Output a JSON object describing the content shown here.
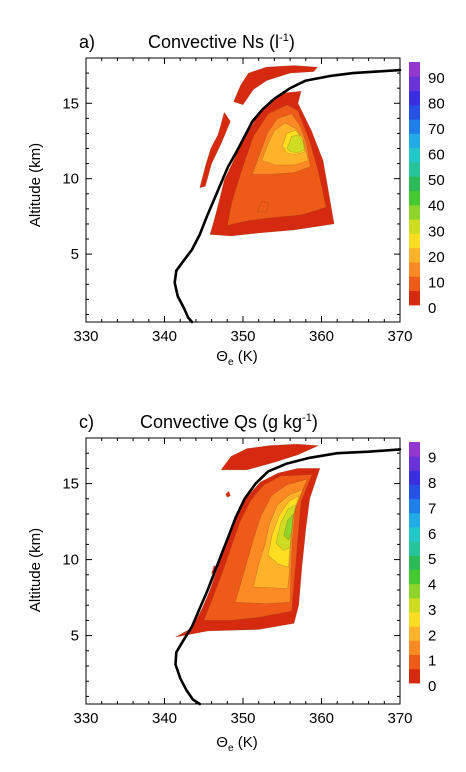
{
  "chart_data": [
    {
      "type": "contour",
      "panel_label": "a)",
      "title_main": "Convective  Ns (l",
      "title_sup": "-1",
      "title_end": ")",
      "xlabel_main": "Θ",
      "xlabel_sub": "e",
      "xlabel_unit": " (K)",
      "ylabel": "Altitude (km)",
      "xlim": [
        330,
        370
      ],
      "ylim": [
        0.5,
        18
      ],
      "xticks": [
        "330",
        "340",
        "350",
        "360",
        "370"
      ],
      "yticks": [
        "5",
        "10",
        "15"
      ],
      "colorbar": {
        "ticks": [
          "0",
          "10",
          "20",
          "30",
          "40",
          "50",
          "60",
          "70",
          "80",
          "90"
        ],
        "colors": [
          "#d62a10",
          "#ee5a18",
          "#fb8a25",
          "#ffb32a",
          "#ffde22",
          "#cfdd22",
          "#8fd42a",
          "#45c832",
          "#2dbb5a",
          "#27c39a",
          "#22c8c8",
          "#23abe5",
          "#1f7fea",
          "#2651e5",
          "#3a2fe0",
          "#6a33d8",
          "#9437cf"
        ]
      },
      "profile_line": [
        [
          343.5,
          0.5
        ],
        [
          343,
          0.8
        ],
        [
          342.5,
          1.4
        ],
        [
          341.7,
          2.2
        ],
        [
          341.3,
          3.1
        ],
        [
          341.5,
          3.9
        ],
        [
          342.2,
          4.4
        ],
        [
          343.5,
          5.3
        ],
        [
          344.5,
          6.3
        ],
        [
          345.4,
          7.5
        ],
        [
          346.3,
          8.6
        ],
        [
          347.2,
          9.7
        ],
        [
          348.1,
          10.8
        ],
        [
          349.2,
          11.8
        ],
        [
          350.2,
          12.8
        ],
        [
          351.2,
          13.8
        ],
        [
          352.5,
          14.6
        ],
        [
          354,
          15.3
        ],
        [
          356,
          16
        ],
        [
          358,
          16.5
        ],
        [
          361,
          16.8
        ],
        [
          364,
          17
        ],
        [
          367,
          17.1
        ],
        [
          370,
          17.2
        ]
      ],
      "contours": [
        {
          "level": 0,
          "polygon": [
            [
              345.8,
              6.3
            ],
            [
              346.3,
              7.2
            ],
            [
              347.1,
              8.8
            ],
            [
              347.6,
              9.9
            ],
            [
              348.7,
              11.1
            ],
            [
              350.2,
              12.7
            ],
            [
              351.8,
              14.1
            ],
            [
              353.5,
              15.2
            ],
            [
              355.5,
              15.7
            ],
            [
              357.4,
              15.8
            ],
            [
              357.0,
              15.0
            ],
            [
              358.7,
              13.2
            ],
            [
              360.2,
              11.2
            ],
            [
              361.6,
              7.0
            ],
            [
              356.5,
              6.6
            ],
            [
              352.0,
              6.4
            ],
            [
              348.5,
              6.2
            ]
          ]
        },
        {
          "level": 0,
          "polygon": [
            [
              348.8,
              15.1
            ],
            [
              349.7,
              16.2
            ],
            [
              350.7,
              17.0
            ],
            [
              353.0,
              17.4
            ],
            [
              356.5,
              17.5
            ],
            [
              359.5,
              17.4
            ],
            [
              359.0,
              17.1
            ],
            [
              356.0,
              17.0
            ],
            [
              353.0,
              16.5
            ],
            [
              351.3,
              15.9
            ],
            [
              350.0,
              14.9
            ]
          ]
        },
        {
          "level": 0,
          "polygon": [
            [
              344.5,
              9.4
            ],
            [
              345.3,
              11.0
            ],
            [
              345.9,
              12.0
            ],
            [
              346.8,
              12.9
            ],
            [
              347.2,
              13.6
            ],
            [
              347.6,
              14.4
            ],
            [
              348.4,
              13.8
            ],
            [
              347.2,
              12.3
            ],
            [
              346.0,
              11.0
            ],
            [
              345.2,
              9.5
            ]
          ]
        },
        {
          "level": 5,
          "polygon": [
            [
              348.0,
              6.9
            ],
            [
              348.6,
              8.5
            ],
            [
              349.8,
              10.5
            ],
            [
              351.3,
              12.8
            ],
            [
              353.2,
              14.3
            ],
            [
              355.6,
              14.9
            ],
            [
              357.0,
              14.5
            ],
            [
              358.5,
              12.5
            ],
            [
              359.6,
              10.5
            ],
            [
              360.6,
              8.1
            ],
            [
              357.5,
              7.6
            ],
            [
              353.5,
              7.4
            ],
            [
              350.5,
              7.2
            ]
          ]
        },
        {
          "level": 10,
          "polygon": [
            [
              351.2,
              10.3
            ],
            [
              352.1,
              11.6
            ],
            [
              353.1,
              13.0
            ],
            [
              354.4,
              14.0
            ],
            [
              356.2,
              14.3
            ],
            [
              357.3,
              13.5
            ],
            [
              358.1,
              12.3
            ],
            [
              358.6,
              10.8
            ],
            [
              356.5,
              10.4
            ],
            [
              353.5,
              10.3
            ]
          ]
        },
        {
          "level": 15,
          "polygon": [
            [
              352.4,
              11.2
            ],
            [
              353.1,
              12.2
            ],
            [
              354.0,
              13.2
            ],
            [
              355.4,
              13.7
            ],
            [
              356.8,
              13.3
            ],
            [
              357.8,
              12.4
            ],
            [
              358.3,
              11.2
            ],
            [
              356.5,
              10.9
            ],
            [
              354.2,
              10.9
            ]
          ]
        },
        {
          "level": 20,
          "polygon": [
            [
              355.0,
              12.2
            ],
            [
              355.6,
              13.0
            ],
            [
              356.7,
              13.2
            ],
            [
              357.6,
              12.7
            ],
            [
              357.9,
              11.8
            ],
            [
              356.8,
              11.6
            ],
            [
              355.6,
              11.7
            ]
          ]
        },
        {
          "level": 25,
          "polygon": [
            [
              355.6,
              12.0
            ],
            [
              356.2,
              12.8
            ],
            [
              357.1,
              12.9
            ],
            [
              357.7,
              12.4
            ],
            [
              357.8,
              11.9
            ],
            [
              356.9,
              11.7
            ],
            [
              356.0,
              11.8
            ]
          ]
        },
        {
          "level": 5,
          "polygon": [
            [
              351.8,
              7.8
            ],
            [
              352.4,
              8.5
            ],
            [
              353.3,
              8.4
            ],
            [
              353.0,
              7.8
            ]
          ]
        }
      ]
    },
    {
      "type": "contour",
      "panel_label": "c)",
      "title_main": "Convective Qs (g kg",
      "title_sup": "-1",
      "title_end": ")",
      "xlabel_main": "Θ",
      "xlabel_sub": "e",
      "xlabel_unit": " (K)",
      "ylabel": "Altitude (km)",
      "xlim": [
        330,
        370
      ],
      "ylim": [
        0.5,
        18
      ],
      "xticks": [
        "330",
        "340",
        "350",
        "360",
        "370"
      ],
      "yticks": [
        "5",
        "10",
        "15"
      ],
      "colorbar": {
        "ticks": [
          "0",
          "1",
          "2",
          "3",
          "4",
          "5",
          "6",
          "7",
          "8",
          "9"
        ],
        "colors": [
          "#d62a10",
          "#ee5a18",
          "#fb8a25",
          "#ffb32a",
          "#ffde22",
          "#cfdd22",
          "#8fd42a",
          "#45c832",
          "#2dbb5a",
          "#27c39a",
          "#22c8c8",
          "#23abe5",
          "#1f7fea",
          "#2651e5",
          "#3a2fe0",
          "#6a33d8",
          "#9437cf"
        ]
      },
      "profile_line": [
        [
          344.5,
          0.5
        ],
        [
          343.6,
          0.8
        ],
        [
          342.8,
          1.4
        ],
        [
          342.0,
          2.2
        ],
        [
          341.4,
          3.1
        ],
        [
          341.5,
          3.9
        ],
        [
          342.3,
          4.6
        ],
        [
          343.5,
          5.6
        ],
        [
          344.5,
          6.8
        ],
        [
          345.5,
          8.0
        ],
        [
          346.4,
          9.2
        ],
        [
          347.3,
          10.4
        ],
        [
          348.2,
          11.6
        ],
        [
          349.1,
          12.8
        ],
        [
          350.2,
          14.0
        ],
        [
          351.6,
          15.0
        ],
        [
          353.2,
          15.8
        ],
        [
          355.5,
          16.3
        ],
        [
          358.5,
          16.7
        ],
        [
          362.0,
          17.0
        ],
        [
          366.0,
          17.1
        ],
        [
          370.0,
          17.25
        ]
      ],
      "contours": [
        {
          "level": 0,
          "polygon": [
            [
              341.4,
              4.9
            ],
            [
              343.5,
              5.5
            ],
            [
              344.8,
              6.8
            ],
            [
              345.8,
              8.0
            ],
            [
              347.0,
              9.8
            ],
            [
              348.2,
              11.5
            ],
            [
              349.2,
              12.8
            ],
            [
              350.3,
              14.0
            ],
            [
              352.2,
              15.1
            ],
            [
              354.5,
              15.7
            ],
            [
              357.0,
              16.0
            ],
            [
              359.8,
              16.0
            ],
            [
              358.5,
              14.0
            ],
            [
              358.0,
              12.0
            ],
            [
              357.5,
              9.5
            ],
            [
              357.1,
              7.0
            ],
            [
              356.5,
              5.8
            ],
            [
              352.0,
              5.4
            ],
            [
              345.5,
              5.3
            ]
          ]
        },
        {
          "level": 0,
          "polygon": [
            [
              347.2,
              15.9
            ],
            [
              348.5,
              16.8
            ],
            [
              350.5,
              17.3
            ],
            [
              353.3,
              17.5
            ],
            [
              356.8,
              17.6
            ],
            [
              359.6,
              17.5
            ],
            [
              357.0,
              16.9
            ],
            [
              354.0,
              16.4
            ],
            [
              350.5,
              15.9
            ]
          ]
        },
        {
          "level": 0.5,
          "polygon": [
            [
              345.0,
              6.0
            ],
            [
              346.0,
              7.3
            ],
            [
              347.4,
              9.2
            ],
            [
              348.6,
              11.0
            ],
            [
              349.7,
              12.6
            ],
            [
              351.0,
              13.9
            ],
            [
              352.6,
              14.9
            ],
            [
              354.8,
              15.5
            ],
            [
              358.8,
              15.6
            ],
            [
              357.4,
              13.8
            ],
            [
              357.0,
              11.5
            ],
            [
              356.6,
              8.9
            ],
            [
              356.2,
              6.6
            ],
            [
              352.0,
              6.2
            ],
            [
              348.5,
              6.0
            ]
          ]
        },
        {
          "level": 1,
          "polygon": [
            [
              349.0,
              7.2
            ],
            [
              350.2,
              9.3
            ],
            [
              351.3,
              11.3
            ],
            [
              352.3,
              12.9
            ],
            [
              353.6,
              14.2
            ],
            [
              355.5,
              14.9
            ],
            [
              358.2,
              15.3
            ],
            [
              356.7,
              13.5
            ],
            [
              356.3,
              11.3
            ],
            [
              356.1,
              9.0
            ],
            [
              356.0,
              7.2
            ],
            [
              353.0,
              7.1
            ]
          ]
        },
        {
          "level": 1.5,
          "polygon": [
            [
              351.3,
              8.2
            ],
            [
              352.0,
              9.7
            ],
            [
              352.8,
              11.0
            ],
            [
              353.4,
              12.4
            ],
            [
              354.4,
              13.6
            ],
            [
              356.0,
              14.3
            ],
            [
              357.6,
              14.6
            ],
            [
              356.4,
              13.0
            ],
            [
              356.1,
              11.0
            ],
            [
              355.9,
              9.2
            ],
            [
              355.7,
              8.1
            ]
          ]
        },
        {
          "level": 2,
          "polygon": [
            [
              353.2,
              10.3
            ],
            [
              353.7,
              11.6
            ],
            [
              354.6,
              12.9
            ],
            [
              355.8,
              13.8
            ],
            [
              357.1,
              14.2
            ],
            [
              356.3,
              12.6
            ],
            [
              356.0,
              11.0
            ],
            [
              355.8,
              9.5
            ],
            [
              354.5,
              9.7
            ]
          ]
        },
        {
          "level": 2.5,
          "polygon": [
            [
              354.2,
              11.1
            ],
            [
              354.8,
              12.4
            ],
            [
              355.7,
              13.3
            ],
            [
              356.7,
              13.6
            ],
            [
              356.2,
              12.3
            ],
            [
              356.0,
              10.8
            ],
            [
              355.2,
              10.6
            ]
          ]
        },
        {
          "level": 3,
          "polygon": [
            [
              355.2,
              11.6
            ],
            [
              355.7,
              12.6
            ],
            [
              356.4,
              13.0
            ],
            [
              356.2,
              11.8
            ],
            [
              355.8,
              11.3
            ]
          ]
        },
        {
          "level": 0,
          "polygon": [
            [
              346.0,
              9.1
            ],
            [
              346.3,
              9.6
            ],
            [
              346.7,
              9.5
            ],
            [
              346.4,
              9.0
            ]
          ]
        },
        {
          "level": 0,
          "polygon": [
            [
              347.8,
              14.3
            ],
            [
              348.2,
              14.5
            ],
            [
              348.4,
              14.2
            ],
            [
              348.0,
              14.1
            ]
          ]
        }
      ]
    }
  ]
}
